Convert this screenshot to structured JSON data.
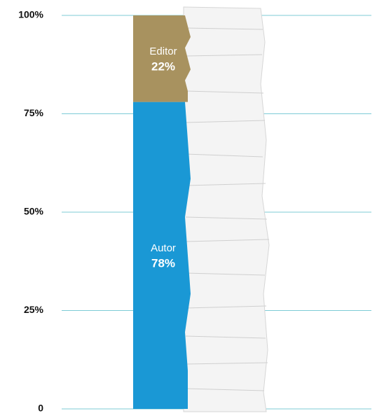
{
  "chart_data": {
    "type": "bar",
    "stacked": true,
    "series": [
      {
        "name": "Autor",
        "color": "#1a98d5",
        "values": [
          78
        ],
        "value_labels": [
          "78%"
        ]
      },
      {
        "name": "Editor",
        "color": "#a8925f",
        "values": [
          22
        ],
        "value_labels": [
          "22%"
        ]
      }
    ],
    "ylim": [
      0,
      100
    ],
    "yticks": [
      0,
      {
        "value": 25,
        "label": "25%"
      },
      {
        "value": 50,
        "label": "50%"
      },
      {
        "value": 75,
        "label": "75%"
      },
      {
        "value": 100,
        "label": "100%"
      }
    ],
    "grid": true,
    "grid_color": "#7ccbd6"
  }
}
